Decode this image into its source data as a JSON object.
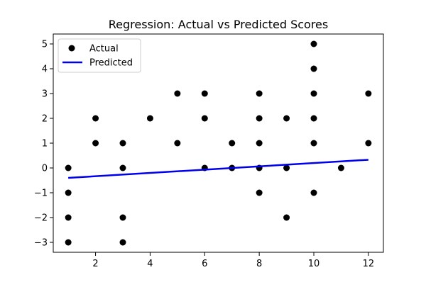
{
  "chart_data": {
    "type": "scatter",
    "title": "Regression: Actual vs Predicted Scores",
    "xlabel": "",
    "ylabel": "",
    "xlim": [
      0.45,
      12.55
    ],
    "ylim": [
      -3.4,
      5.4
    ],
    "xticks": [
      2,
      4,
      6,
      8,
      10,
      12
    ],
    "yticks": [
      -3,
      -2,
      -1,
      0,
      1,
      2,
      3,
      4,
      5
    ],
    "grid": false,
    "legend_position": "upper-left",
    "series": [
      {
        "name": "Actual",
        "kind": "scatter",
        "color": "#000000",
        "points": [
          [
            1,
            0
          ],
          [
            1,
            -1
          ],
          [
            1,
            -2
          ],
          [
            1,
            -3
          ],
          [
            2,
            2
          ],
          [
            2,
            1
          ],
          [
            3,
            1
          ],
          [
            3,
            0
          ],
          [
            3,
            -2
          ],
          [
            3,
            -3
          ],
          [
            4,
            2
          ],
          [
            5,
            3
          ],
          [
            5,
            1
          ],
          [
            6,
            3
          ],
          [
            6,
            2
          ],
          [
            6,
            0
          ],
          [
            7,
            1
          ],
          [
            7,
            0
          ],
          [
            8,
            3
          ],
          [
            8,
            2
          ],
          [
            8,
            1
          ],
          [
            8,
            0
          ],
          [
            8,
            -1
          ],
          [
            9,
            2
          ],
          [
            9,
            0
          ],
          [
            9,
            -2
          ],
          [
            10,
            5
          ],
          [
            10,
            4
          ],
          [
            10,
            3
          ],
          [
            10,
            2
          ],
          [
            10,
            1
          ],
          [
            10,
            -1
          ],
          [
            11,
            0
          ],
          [
            12,
            3
          ],
          [
            12,
            1
          ]
        ]
      },
      {
        "name": "Predicted",
        "kind": "line",
        "color": "#0000ee",
        "points": [
          [
            1,
            -0.4
          ],
          [
            12,
            0.33
          ]
        ]
      }
    ]
  }
}
